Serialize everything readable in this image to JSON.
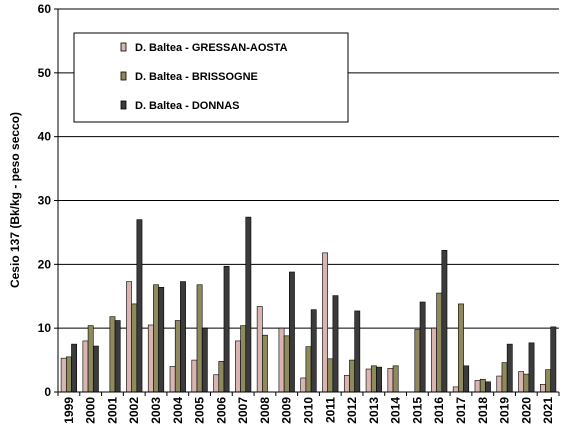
{
  "chart_data": {
    "type": "bar",
    "title": "",
    "xlabel": "",
    "ylabel": "Cesio 137 (Bk/kg - peso secco)",
    "ylim": [
      0,
      60
    ],
    "yticks": [
      0,
      10,
      20,
      30,
      40,
      50,
      60
    ],
    "grid": "horizontal",
    "legend_position": "top-left",
    "categories": [
      "1999",
      "2000",
      "2001",
      "2002",
      "2003",
      "2004",
      "2005",
      "2006",
      "2007",
      "2008",
      "2009",
      "2010",
      "2011",
      "2012",
      "2013",
      "2014",
      "2015",
      "2016",
      "2017",
      "2018",
      "2019",
      "2020",
      "2021"
    ],
    "series": [
      {
        "name": "D. Baltea - GRESSAN-AOSTA",
        "color": "#d8b5b0",
        "values": [
          5.3,
          8.0,
          0,
          17.3,
          10.5,
          4.0,
          5.0,
          2.7,
          8.0,
          13.4,
          10.0,
          2.2,
          21.8,
          2.6,
          3.6,
          3.7,
          0,
          10.0,
          0.8,
          1.8,
          2.5,
          3.2,
          1.2
        ]
      },
      {
        "name": "D. Baltea - BRISSOGNE",
        "color": "#8f8a5d",
        "values": [
          5.5,
          10.4,
          11.8,
          13.8,
          16.8,
          11.2,
          16.8,
          4.8,
          10.4,
          8.9,
          8.8,
          7.1,
          5.2,
          5.0,
          4.1,
          4.1,
          9.8,
          15.5,
          13.8,
          2.0,
          4.6,
          2.8,
          3.5
        ]
      },
      {
        "name": "D. Baltea - DONNAS",
        "color": "#3b3b3b",
        "values": [
          7.5,
          7.2,
          11.2,
          27.0,
          16.4,
          17.3,
          10.0,
          19.7,
          27.4,
          0,
          18.8,
          12.9,
          15.1,
          12.7,
          3.9,
          0,
          14.1,
          22.2,
          4.1,
          1.6,
          7.5,
          7.7,
          10.2
        ]
      }
    ]
  }
}
